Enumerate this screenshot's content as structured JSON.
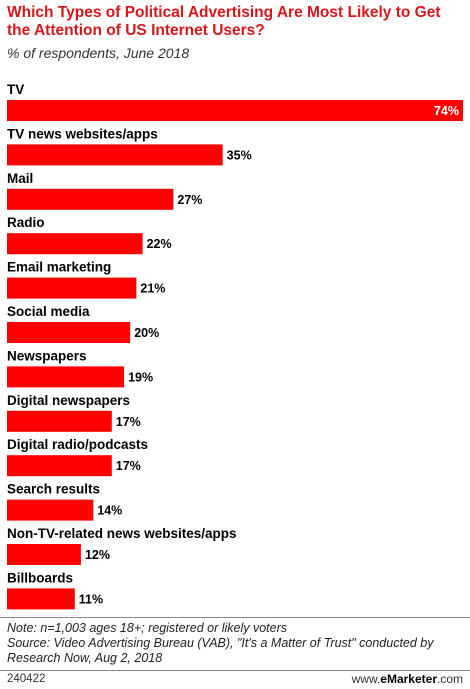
{
  "header": {
    "title": "Which Types of Political Advertising Are Most Likely to Get the Attention of US Internet Users?",
    "subtitle": "% of respondents, June 2018"
  },
  "chart_data": {
    "type": "bar",
    "orientation": "horizontal",
    "categories": [
      "TV",
      "TV news websites/apps",
      "Mail",
      "Radio",
      "Email marketing",
      "Social media",
      "Newspapers",
      "Digital newspapers",
      "Digital radio/podcasts",
      "Search results",
      "Non-TV-related news websites/apps",
      "Billboards"
    ],
    "values": [
      74,
      35,
      27,
      22,
      21,
      20,
      19,
      17,
      17,
      14,
      12,
      11
    ],
    "value_labels": [
      "74%",
      "35%",
      "27%",
      "22%",
      "21%",
      "20%",
      "19%",
      "17%",
      "17%",
      "14%",
      "12%",
      "11%"
    ],
    "title": "Which Types of Political Advertising Are Most Likely to Get the Attention of US Internet Users?",
    "subtitle": "% of respondents, June 2018",
    "xlim": [
      0,
      74
    ],
    "grid": false,
    "legend": "none",
    "bar_color": "#ff0000"
  },
  "footer": {
    "note": "Note: n=1,003 ages 18+; registered or likely voters",
    "source": "Source: Video Advertising Bureau (VAB), \"It's a Matter of Trust\" conducted by Research Now, Aug 2, 2018",
    "chart_id": "240422",
    "brand_prefix": "www.",
    "brand_name": "eMarketer",
    "brand_suffix": ".com"
  }
}
